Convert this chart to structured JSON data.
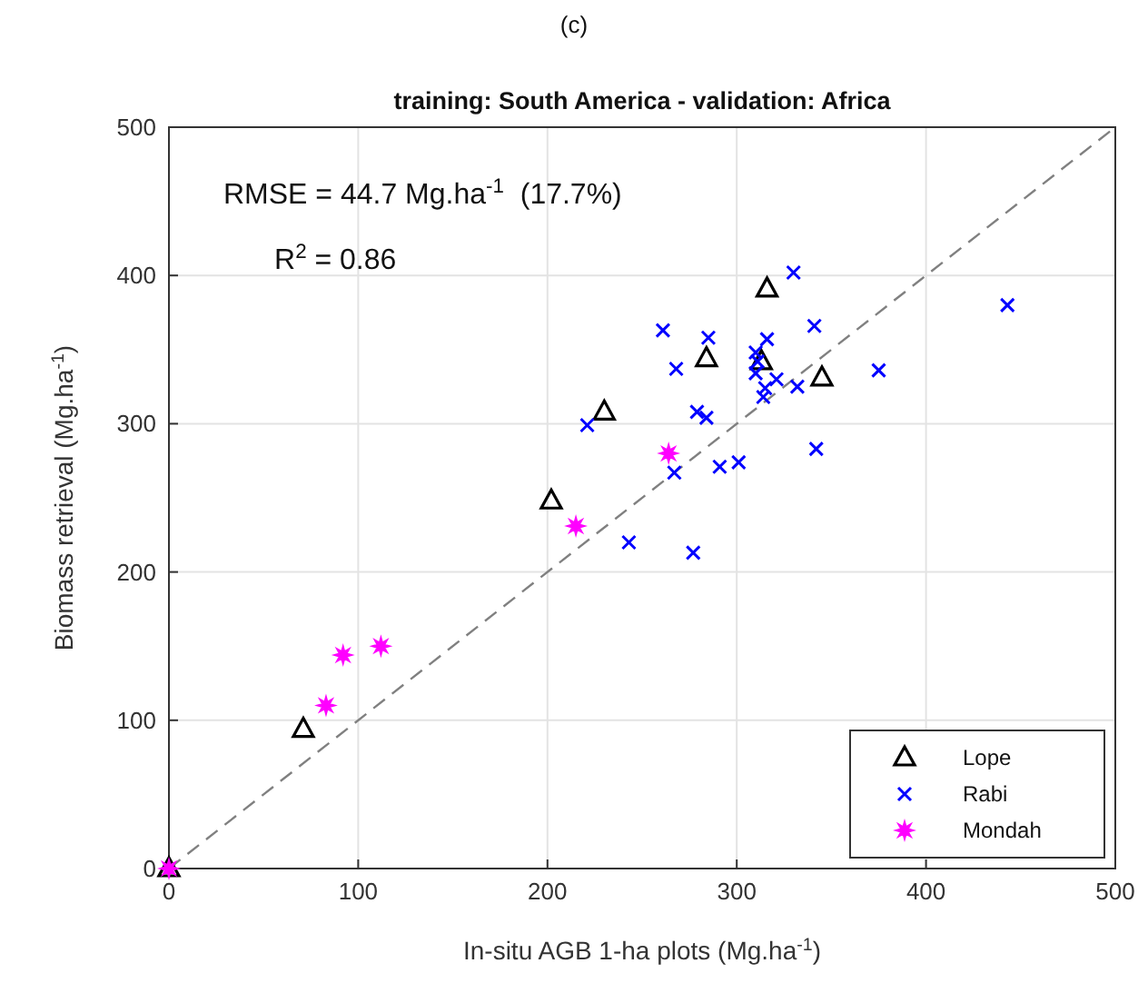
{
  "chart_data": {
    "type": "scatter",
    "title": "training: South America - validation: Africa",
    "xlabel": "In-situ AGB 1-ha plots (Mg.ha$^{-1}$)",
    "ylabel": "Biomass retrieval (Mg.ha$^{-1}$)",
    "annotations": [
      "(c)",
      "RMSE = 44.7 Mg.ha$^{-1}$  (17.7%)",
      "R$^{2}$ = 0.86"
    ],
    "xlim": [
      0,
      500
    ],
    "ylim": [
      0,
      500
    ],
    "xticks": [
      0,
      100,
      200,
      300,
      400,
      500
    ],
    "yticks": [
      0,
      100,
      200,
      300,
      400,
      500
    ],
    "grid": true,
    "legend": "bottom right",
    "series": [
      {
        "type": "line",
        "color": "#808080",
        "marker": "none",
        "line_style": "dashed",
        "x": [
          0,
          500
        ],
        "values": [
          0,
          500
        ]
      },
      {
        "name": "Lope",
        "color": "#000000",
        "marker": "triangle",
        "x": [
          0,
          71,
          202,
          230,
          284,
          316,
          313,
          345
        ],
        "values": [
          0,
          94,
          248,
          308,
          344,
          391,
          342,
          331
        ]
      },
      {
        "name": "Rabi",
        "color": "#0000ff",
        "marker": "cross",
        "x": [
          330,
          261,
          285,
          316,
          341,
          268,
          310,
          311,
          310,
          321,
          332,
          315,
          314,
          279,
          284,
          221,
          342,
          267,
          291,
          301,
          243,
          277,
          443,
          375
        ],
        "values": [
          402,
          363,
          358,
          357,
          366,
          337,
          348,
          342,
          334,
          330,
          325,
          324,
          318,
          308,
          304,
          299,
          283,
          267,
          271,
          274,
          220,
          213,
          380,
          336
        ]
      },
      {
        "name": "Mondah",
        "color": "#ff00ff",
        "marker": "star",
        "x": [
          0,
          83,
          92,
          112,
          215,
          264
        ],
        "values": [
          0,
          110,
          144,
          150,
          231,
          280
        ]
      }
    ]
  }
}
